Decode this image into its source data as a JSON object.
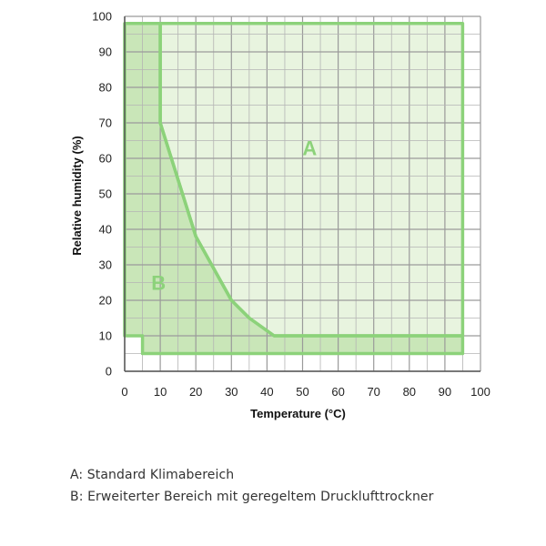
{
  "chart_data": {
    "type": "area",
    "xlabel": "Temperature (°C)",
    "ylabel": "Relative humidity (%)",
    "xlim": [
      0,
      100
    ],
    "ylim": [
      0,
      100
    ],
    "xticks": [
      0,
      10,
      20,
      30,
      40,
      50,
      60,
      70,
      80,
      90,
      100
    ],
    "yticks": [
      0,
      10,
      20,
      30,
      40,
      50,
      60,
      70,
      80,
      90,
      100
    ],
    "grid": true,
    "regions": [
      {
        "label": "A",
        "name": "Standard Klimabereich",
        "color": "#8cd27a",
        "fill": "#e8f4df",
        "points": [
          [
            10,
            98
          ],
          [
            95,
            98
          ],
          [
            95,
            10
          ],
          [
            42,
            10
          ],
          [
            35,
            15
          ],
          [
            30,
            20
          ],
          [
            20,
            38
          ],
          [
            10,
            70
          ]
        ]
      },
      {
        "label": "B",
        "name": "Erweiterter Bereich mit geregeltem Drucklufttrockner",
        "color": "#8cd27a",
        "fill": "#c9e6b8",
        "points": [
          [
            0,
            98
          ],
          [
            10,
            98
          ],
          [
            10,
            70
          ],
          [
            20,
            38
          ],
          [
            30,
            20
          ],
          [
            35,
            15
          ],
          [
            42,
            10
          ],
          [
            95,
            10
          ],
          [
            95,
            5
          ],
          [
            5,
            5
          ],
          [
            5,
            10
          ],
          [
            0,
            10
          ]
        ]
      }
    ],
    "region_label_positions": [
      {
        "label": "A",
        "x": 52,
        "y": 63
      },
      {
        "label": "B",
        "x": 9.5,
        "y": 25
      }
    ]
  },
  "legend": {
    "a": "A: Standard Klimabereich",
    "b": "B: Erweiterter Bereich mit geregeltem Drucklufttrockner"
  }
}
